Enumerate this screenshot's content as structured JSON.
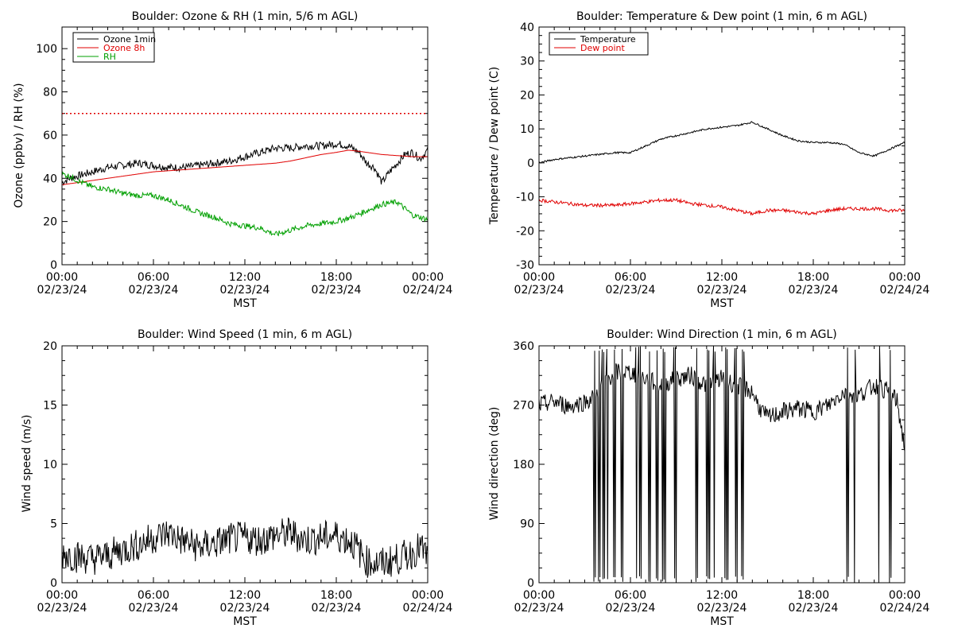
{
  "chart_data": [
    {
      "type": "line",
      "title": "Boulder: Ozone & RH (1 min, 5/6 m AGL)",
      "xlabel": "MST",
      "ylabel": "Ozone (ppbv) / RH (%)",
      "xlim": [
        0,
        24
      ],
      "ylim": [
        0,
        110
      ],
      "yticks": [
        0,
        20,
        40,
        60,
        80,
        100
      ],
      "xticks": [
        {
          "time": "00:00",
          "date": "02/23/24"
        },
        {
          "time": "06:00",
          "date": "02/23/24"
        },
        {
          "time": "12:00",
          "date": "02/23/24"
        },
        {
          "time": "18:00",
          "date": "02/23/24"
        },
        {
          "time": "00:00",
          "date": "02/24/24"
        }
      ],
      "legend": "top-left",
      "reference_line": {
        "y": 70,
        "color": "#e00000",
        "style": "dotted"
      },
      "series": [
        {
          "name": "Ozone 1min",
          "color": "#000000",
          "noise": 1.8,
          "x": [
            0,
            0.5,
            1,
            2,
            3,
            4,
            5,
            6,
            7,
            8,
            9,
            10,
            11,
            12,
            13,
            14,
            15,
            16,
            17,
            18,
            18.8,
            19.5,
            20,
            20.5,
            21,
            21.5,
            22,
            22.5,
            23,
            23.5,
            24
          ],
          "y": [
            38,
            40,
            41,
            43,
            45,
            46,
            47,
            46,
            45,
            45,
            46,
            47,
            48,
            50,
            52,
            54,
            54,
            55,
            55,
            56,
            55,
            52,
            47,
            45,
            38,
            43,
            47,
            51,
            52,
            49,
            53
          ]
        },
        {
          "name": "Ozone 8h",
          "color": "#e00000",
          "noise": 0,
          "x": [
            0,
            1,
            2,
            3,
            4,
            5,
            6,
            7,
            8,
            9,
            10,
            11,
            12,
            13,
            14,
            15,
            16,
            17,
            18,
            18.8,
            19.5,
            20,
            21,
            22,
            23,
            24
          ],
          "y": [
            37,
            38,
            39,
            40,
            41,
            42,
            43,
            43.5,
            44,
            44.5,
            45,
            45.5,
            46,
            46.5,
            47,
            48,
            49.5,
            51,
            52,
            53,
            52.5,
            52,
            51,
            50.5,
            50,
            50
          ]
        },
        {
          "name": "RH",
          "color": "#00a000",
          "noise": 1.3,
          "x": [
            0,
            0.5,
            1,
            2,
            3,
            4,
            5,
            6,
            7,
            8,
            9,
            10,
            11,
            12,
            13,
            14,
            15,
            16,
            17,
            18,
            19,
            20,
            21,
            22,
            22.5,
            23,
            24
          ],
          "y": [
            42,
            41,
            39,
            36,
            35,
            33,
            32,
            32,
            30,
            27,
            24,
            22,
            19,
            18,
            17,
            14,
            16,
            18,
            19,
            20,
            22,
            25,
            28,
            29,
            26,
            23,
            21
          ]
        }
      ]
    },
    {
      "type": "line",
      "title": "Boulder: Temperature & Dew point (1 min, 6 m AGL)",
      "xlabel": "MST",
      "ylabel": "Temperature / Dew point (C)",
      "xlim": [
        0,
        24
      ],
      "ylim": [
        -30,
        40
      ],
      "yticks": [
        -30,
        -20,
        -10,
        0,
        10,
        20,
        30,
        40
      ],
      "xticks": [
        {
          "time": "00:00",
          "date": "02/23/24"
        },
        {
          "time": "06:00",
          "date": "02/23/24"
        },
        {
          "time": "12:00",
          "date": "02/23/24"
        },
        {
          "time": "18:00",
          "date": "02/23/24"
        },
        {
          "time": "00:00",
          "date": "02/24/24"
        }
      ],
      "legend": "top-left",
      "series": [
        {
          "name": "Temperature",
          "color": "#000000",
          "noise": 0.25,
          "x": [
            0,
            1,
            2,
            3,
            4,
            5,
            6,
            7,
            8,
            9,
            10,
            11,
            12,
            13,
            14,
            15,
            16,
            17,
            18,
            19,
            20,
            21,
            22,
            23,
            24
          ],
          "y": [
            0,
            1,
            1.5,
            2,
            2.5,
            3,
            3,
            5,
            7,
            8,
            9,
            10,
            10.5,
            11,
            12,
            10,
            8,
            6.5,
            6,
            6,
            5.5,
            3,
            2,
            4,
            6
          ]
        },
        {
          "name": "Dew point",
          "color": "#e00000",
          "noise": 0.5,
          "x": [
            0,
            1,
            2,
            3,
            4,
            5,
            6,
            7,
            8,
            9,
            10,
            11,
            12,
            13,
            14,
            15,
            16,
            17,
            18,
            19,
            20,
            21,
            22,
            23,
            24
          ],
          "y": [
            -11,
            -11.5,
            -12,
            -12.5,
            -12.5,
            -12.5,
            -12,
            -11.5,
            -11,
            -11,
            -12,
            -12.5,
            -13,
            -14,
            -15,
            -14,
            -14,
            -14.5,
            -15,
            -14,
            -13.5,
            -13.5,
            -13.5,
            -14,
            -14
          ]
        }
      ]
    },
    {
      "type": "line",
      "title": "Boulder: Wind Speed (1 min, 6 m AGL)",
      "xlabel": "MST",
      "ylabel": "Wind speed (m/s)",
      "xlim": [
        0,
        24
      ],
      "ylim": [
        0,
        20
      ],
      "yticks": [
        0,
        5,
        10,
        15,
        20
      ],
      "xticks": [
        {
          "time": "00:00",
          "date": "02/23/24"
        },
        {
          "time": "06:00",
          "date": "02/23/24"
        },
        {
          "time": "12:00",
          "date": "02/23/24"
        },
        {
          "time": "18:00",
          "date": "02/23/24"
        },
        {
          "time": "00:00",
          "date": "02/24/24"
        }
      ],
      "series": [
        {
          "color": "#000000",
          "noise": 1.4,
          "x": [
            0,
            1,
            2,
            3,
            4,
            5,
            6,
            7,
            8,
            9,
            10,
            11,
            12,
            13,
            14,
            15,
            16,
            17,
            18,
            19,
            20,
            21,
            22,
            23,
            23.5,
            24
          ],
          "y": [
            2.5,
            2.2,
            2,
            2.3,
            2.8,
            3.2,
            3.8,
            4.2,
            3.5,
            3,
            3.3,
            3.7,
            3.8,
            3.6,
            4,
            4.2,
            3.6,
            3.8,
            4,
            3.5,
            1.8,
            1.6,
            2,
            2.5,
            3,
            2.2
          ]
        }
      ]
    },
    {
      "type": "line",
      "title": "Boulder: Wind Direction (1 min, 6 m AGL)",
      "xlabel": "MST",
      "ylabel": "Wind direction (deg)",
      "xlim": [
        0,
        24
      ],
      "ylim": [
        0,
        360
      ],
      "yticks": [
        0,
        90,
        180,
        270,
        360
      ],
      "xticks": [
        {
          "time": "00:00",
          "date": "02/23/24"
        },
        {
          "time": "06:00",
          "date": "02/23/24"
        },
        {
          "time": "12:00",
          "date": "02/23/24"
        },
        {
          "time": "18:00",
          "date": "02/23/24"
        },
        {
          "time": "00:00",
          "date": "02/24/24"
        }
      ],
      "series": [
        {
          "color": "#000000",
          "noise": 14,
          "x": [
            0,
            1,
            2,
            3,
            3.5,
            4,
            5,
            6,
            7,
            8,
            9,
            10,
            11,
            12,
            13,
            14,
            14.5,
            15,
            16,
            17,
            18,
            19,
            20,
            21,
            22,
            23,
            23.5,
            24
          ],
          "y": [
            270,
            275,
            268,
            275,
            280,
            300,
            320,
            320,
            310,
            300,
            310,
            315,
            300,
            310,
            300,
            290,
            265,
            250,
            260,
            265,
            260,
            270,
            290,
            285,
            300,
            290,
            275,
            205
          ],
          "spikes": [
            [
              3.6,
              3.7
            ],
            [
              3.9,
              4.0
            ],
            [
              4.15,
              4.3
            ],
            [
              4.45,
              4.5
            ],
            [
              4.9,
              5.0
            ],
            [
              5.4,
              5.5
            ],
            [
              6.35,
              6.4
            ],
            [
              6.55,
              6.7
            ],
            [
              7.2,
              7.3
            ],
            [
              7.7,
              7.8
            ],
            [
              8.1,
              8.3
            ],
            [
              8.85,
              9.0
            ],
            [
              10.3,
              10.4
            ],
            [
              11.0,
              11.2
            ],
            [
              11.45,
              11.55
            ],
            [
              12.2,
              12.4
            ],
            [
              12.85,
              13.0
            ],
            [
              13.3,
              13.45
            ],
            [
              20.2,
              20.3
            ],
            [
              20.7,
              20.75
            ],
            [
              22.3,
              22.35
            ],
            [
              23.0,
              23.1
            ]
          ]
        }
      ]
    }
  ]
}
